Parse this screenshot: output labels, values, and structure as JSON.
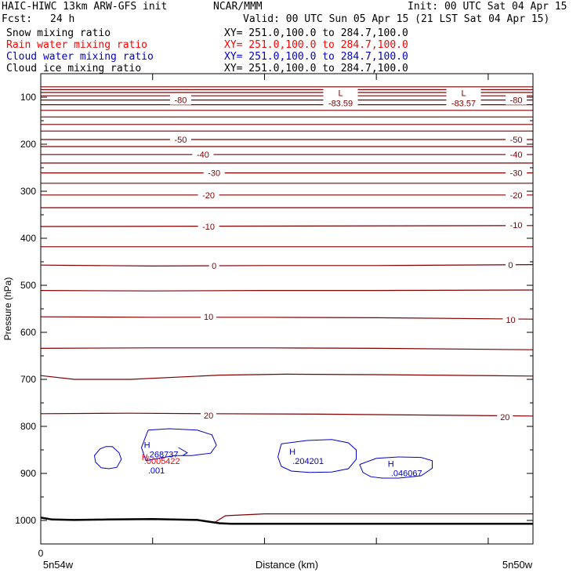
{
  "header": {
    "title_left": "HAIC-HIWC 13km ARW-GFS init",
    "center": "NCAR/MMM",
    "init": "Init: 00 UTC Sat 04 Apr 15",
    "fcst_label": "Fcst:",
    "fcst_value": "24 h",
    "valid": "Valid: 00 UTC Sun 05 Apr 15 (21 LST Sat 04 Apr 15)"
  },
  "fields": [
    {
      "name": "Snow mixing ratio",
      "xy": "XY= 251.0,100.0 to 284.7,100.0",
      "color": "#000000"
    },
    {
      "name": "Rain water mixing ratio",
      "xy": "XY= 251.0,100.0 to 284.7,100.0",
      "color": "#ff0000"
    },
    {
      "name": "Cloud water mixing ratio",
      "xy": "XY= 251.0,100.0 to 284.7,100.0",
      "color": "#0000cc"
    },
    {
      "name": "Cloud ice mixing ratio",
      "xy": "XY= 251.0,100.0 to 284.7,100.0",
      "color": "#000000"
    }
  ],
  "chart_data": {
    "type": "line",
    "ylabel": "Pressure (hPa)",
    "xlabel": "Distance (km)",
    "y_reversed": true,
    "ylim": [
      1050,
      50
    ],
    "yticks": [
      100,
      200,
      300,
      400,
      500,
      600,
      700,
      800,
      900,
      1000
    ],
    "xlim": [
      0,
      44
    ],
    "xticks": [
      0,
      10,
      20,
      30,
      40
    ],
    "xtick_labels_shown": [
      "0"
    ],
    "x_end_labels": [
      "5n54w",
      "5n50w"
    ],
    "temperature_contours": {
      "color": "#800000",
      "labels": [
        {
          "text": "-80",
          "x": 12.5,
          "p": 106
        },
        {
          "text": "-80",
          "x": 42.5,
          "p": 106
        },
        {
          "text": "-50",
          "x": 12.5,
          "p": 190
        },
        {
          "text": "-50",
          "x": 42.5,
          "p": 190
        },
        {
          "text": "-40",
          "x": 14.5,
          "p": 222
        },
        {
          "text": "-40",
          "x": 42.5,
          "p": 222
        },
        {
          "text": "-30",
          "x": 15.5,
          "p": 261
        },
        {
          "text": "-30",
          "x": 42.5,
          "p": 261
        },
        {
          "text": "-20",
          "x": 15,
          "p": 308
        },
        {
          "text": "-20",
          "x": 42.5,
          "p": 308
        },
        {
          "text": "-10",
          "x": 15,
          "p": 375
        },
        {
          "text": "-10",
          "x": 42.5,
          "p": 372
        },
        {
          "text": "0",
          "x": 15.5,
          "p": 458
        },
        {
          "text": "0",
          "x": 42,
          "p": 457
        },
        {
          "text": "10",
          "x": 15,
          "p": 567
        },
        {
          "text": "10",
          "x": 42,
          "p": 573
        },
        {
          "text": "20",
          "x": 15,
          "p": 777
        },
        {
          "text": "20",
          "x": 41.5,
          "p": 780
        }
      ],
      "lines": [
        {
          "x": [
            0,
            44
          ],
          "p": [
            78,
            78
          ]
        },
        {
          "x": [
            0,
            44
          ],
          "p": [
            84,
            84
          ]
        },
        {
          "x": [
            0,
            44
          ],
          "p": [
            90,
            90
          ]
        },
        {
          "x": [
            0,
            44
          ],
          "p": [
            97,
            97
          ]
        },
        {
          "x": [
            0,
            44
          ],
          "p": [
            106,
            106
          ]
        },
        {
          "x": [
            0,
            44
          ],
          "p": [
            116,
            116
          ]
        },
        {
          "x": [
            0,
            44
          ],
          "p": [
            128,
            128
          ]
        },
        {
          "x": [
            0,
            44
          ],
          "p": [
            142,
            142
          ]
        },
        {
          "x": [
            0,
            44
          ],
          "p": [
            158,
            158
          ]
        },
        {
          "x": [
            0,
            44
          ],
          "p": [
            172,
            172
          ]
        },
        {
          "x": [
            0,
            44
          ],
          "p": [
            190,
            190
          ]
        },
        {
          "x": [
            0,
            44
          ],
          "p": [
            205,
            205
          ]
        },
        {
          "x": [
            0,
            44
          ],
          "p": [
            222,
            222
          ]
        },
        {
          "x": [
            0,
            44
          ],
          "p": [
            240,
            240
          ]
        },
        {
          "x": [
            0,
            44
          ],
          "p": [
            261,
            261
          ]
        },
        {
          "x": [
            0,
            44
          ],
          "p": [
            283,
            283
          ]
        },
        {
          "x": [
            0,
            44
          ],
          "p": [
            308,
            308
          ]
        },
        {
          "x": [
            0,
            44
          ],
          "p": [
            335,
            335
          ]
        },
        {
          "x": [
            0,
            44
          ],
          "p": [
            375,
            373
          ]
        },
        {
          "x": [
            0,
            44
          ],
          "p": [
            418,
            418
          ]
        },
        {
          "x": [
            0,
            10,
            20,
            30,
            44
          ],
          "p": [
            457,
            459,
            458,
            458,
            456
          ]
        },
        {
          "x": [
            0,
            10,
            20,
            30,
            44
          ],
          "p": [
            511,
            512,
            511,
            511,
            510
          ]
        },
        {
          "x": [
            0,
            10,
            20,
            30,
            44
          ],
          "p": [
            567,
            568,
            568,
            569,
            572
          ]
        },
        {
          "x": [
            0,
            10,
            20,
            30,
            44
          ],
          "p": [
            634,
            633,
            633,
            634,
            637
          ]
        },
        {
          "x": [
            0,
            3,
            8,
            16,
            22,
            30,
            44
          ],
          "p": [
            692,
            700,
            700,
            691,
            689,
            690,
            693
          ]
        },
        {
          "x": [
            0,
            8,
            15,
            25,
            35,
            44
          ],
          "p": [
            773,
            772,
            773,
            774,
            776,
            778
          ]
        },
        {
          "x": [
            15.5,
            16.5,
            20,
            30,
            44
          ],
          "p": [
            1005,
            990,
            986,
            986,
            986
          ]
        }
      ],
      "min_labels": [
        {
          "marker": "L",
          "value": "-83.59",
          "x": 26.8,
          "p": 96
        },
        {
          "marker": "L",
          "value": "-83.57",
          "x": 37.8,
          "p": 96
        }
      ]
    },
    "surface": {
      "color": "#000000",
      "x": [
        0,
        1,
        3,
        6,
        10,
        14,
        16,
        17,
        25,
        35,
        44
      ],
      "p": [
        994,
        998,
        999,
        998,
        997,
        999,
        1006,
        1007,
        1007,
        1007,
        1007
      ]
    },
    "cloud_water": {
      "color": "#0000cc",
      "contours": [
        {
          "x": [
            5.8,
            6.4,
            7.0,
            7.2,
            6.8,
            6.1,
            5.4,
            4.9,
            4.8,
            5.3,
            5.8
          ],
          "p": [
            843,
            843,
            856,
            870,
            887,
            890,
            888,
            876,
            862,
            848,
            843
          ]
        },
        {
          "x": [
            9.6,
            11.5,
            14.0,
            15.3,
            15.7,
            15.2,
            13.5,
            12.0,
            10.5,
            9.4,
            9.0,
            9.6
          ],
          "p": [
            808,
            805,
            808,
            818,
            840,
            857,
            862,
            862,
            868,
            873,
            845,
            808
          ]
        },
        {
          "x": [
            12.3,
            13.1,
            12.7
          ],
          "p": [
            845,
            856,
            862
          ]
        },
        {
          "x": [
            21.5,
            23.8,
            26.0,
            27.5,
            28.2,
            28.2,
            27.5,
            26.0,
            24.0,
            22.4,
            21.5,
            21.2,
            21.5
          ],
          "p": [
            837,
            830,
            828,
            835,
            850,
            870,
            890,
            897,
            898,
            895,
            885,
            865,
            837
          ]
        },
        {
          "x": [
            28.5,
            30.0,
            32.0,
            34.0,
            35.0,
            35.0,
            34.0,
            32.0,
            30.5,
            29.5,
            28.8,
            28.5
          ],
          "p": [
            881,
            868,
            865,
            866,
            873,
            889,
            905,
            910,
            910,
            907,
            898,
            881
          ]
        }
      ],
      "max_labels": [
        {
          "marker": "H",
          "value": ".268737",
          "x": 9.5,
          "p": 846
        },
        {
          "marker": "H",
          "value": ".204201",
          "x": 22.5,
          "p": 860
        },
        {
          "marker": "H",
          "value": ".046067",
          "x": 31.3,
          "p": 886
        },
        {
          "marker": "",
          "value": ".001",
          "x": 9.5,
          "p": 893
        }
      ]
    },
    "rain_water": {
      "color": "#ff0000",
      "max_labels": [
        {
          "marker": "H",
          "value": ".0005422",
          "x": 9.3,
          "p": 872
        }
      ]
    }
  }
}
